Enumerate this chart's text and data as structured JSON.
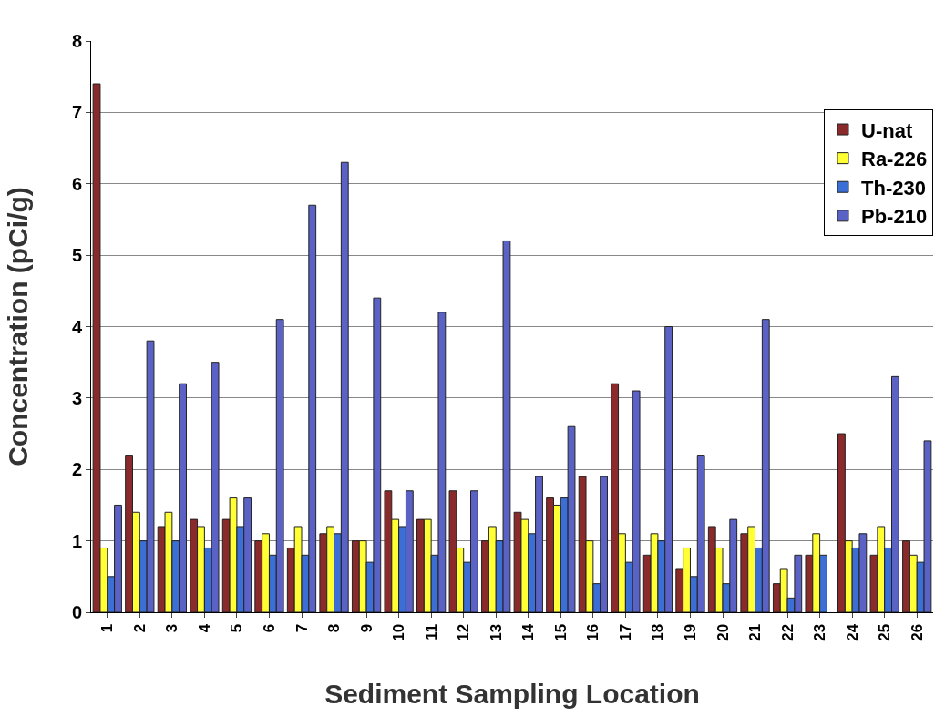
{
  "chart_data": {
    "type": "bar",
    "xlabel": "Sediment Sampling Location",
    "ylabel": "Concentration (pCi/g)",
    "categories": [
      "1",
      "2",
      "3",
      "4",
      "5",
      "6",
      "7",
      "8",
      "9",
      "10",
      "11",
      "12",
      "13",
      "14",
      "15",
      "16",
      "17",
      "18",
      "19",
      "20",
      "21",
      "22",
      "23",
      "24",
      "25",
      "26"
    ],
    "series": [
      {
        "name": "U-nat",
        "color": "#8b2a2a",
        "values": [
          7.4,
          2.2,
          1.2,
          1.3,
          1.3,
          1.0,
          0.9,
          1.1,
          1.0,
          1.7,
          1.3,
          1.7,
          1.0,
          1.4,
          1.6,
          1.9,
          3.2,
          0.8,
          0.6,
          1.2,
          1.1,
          0.4,
          0.8,
          2.5,
          0.8,
          1.0
        ]
      },
      {
        "name": "Ra-226",
        "color": "#ffff33",
        "values": [
          0.9,
          1.4,
          1.4,
          1.2,
          1.6,
          1.1,
          1.2,
          1.2,
          1.0,
          1.3,
          1.3,
          0.9,
          1.2,
          1.3,
          1.5,
          1.0,
          1.1,
          1.1,
          0.9,
          0.9,
          1.2,
          0.6,
          1.1,
          1.0,
          1.2,
          0.8
        ]
      },
      {
        "name": "Th-230",
        "color": "#3b6fd6",
        "values": [
          0.5,
          1.0,
          1.0,
          0.9,
          1.2,
          0.8,
          0.8,
          1.1,
          0.7,
          1.2,
          0.8,
          0.7,
          1.0,
          1.1,
          1.6,
          0.4,
          0.7,
          1.0,
          0.5,
          0.4,
          0.9,
          0.2,
          0.8,
          0.9,
          0.9,
          0.7
        ]
      },
      {
        "name": "Pb-210",
        "color": "#5a62c6",
        "values": [
          1.5,
          3.8,
          3.2,
          3.5,
          1.6,
          4.1,
          5.7,
          6.3,
          4.4,
          1.7,
          4.2,
          1.7,
          5.2,
          1.9,
          2.6,
          1.9,
          3.1,
          4.0,
          2.2,
          1.3,
          4.1,
          0.8,
          null,
          1.1,
          3.3,
          2.4
        ]
      }
    ],
    "ylim": [
      0,
      8
    ],
    "yticks": [
      0,
      1,
      2,
      3,
      4,
      5,
      6,
      7,
      8
    ],
    "grid": "y",
    "legend": "top right"
  }
}
